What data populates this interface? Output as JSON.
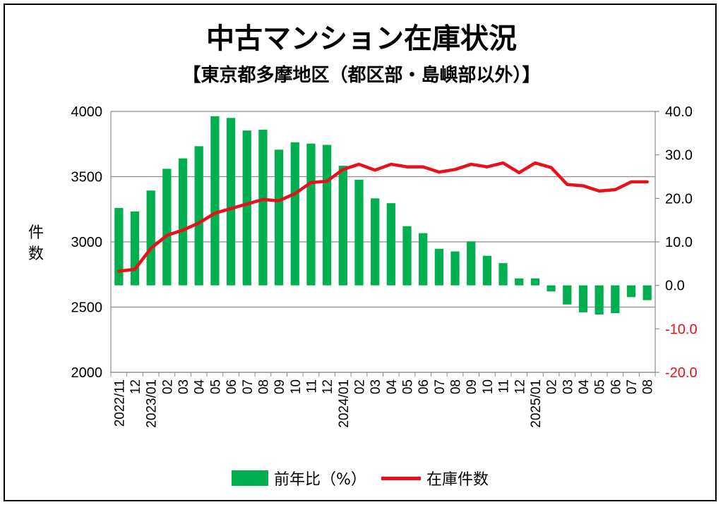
{
  "title": "中古マンション在庫状況",
  "subtitle": "【東京都多摩地区（都区部・島嶼部以外）】",
  "chart_data": {
    "type": "bar+line",
    "categories": [
      "2022/11",
      "12",
      "2023/01",
      "02",
      "03",
      "04",
      "05",
      "06",
      "07",
      "08",
      "09",
      "10",
      "11",
      "12",
      "2024/01",
      "02",
      "03",
      "04",
      "05",
      "06",
      "07",
      "08",
      "09",
      "10",
      "11",
      "12",
      "2025/01",
      "02",
      "03",
      "04",
      "05",
      "06",
      "07",
      "08"
    ],
    "series": [
      {
        "name": "前年比（%）",
        "type": "bar",
        "axis": "right",
        "color": "#00B050",
        "values": [
          17.8,
          17.0,
          21.8,
          26.8,
          29.2,
          32.0,
          38.9,
          38.5,
          35.6,
          35.8,
          31.2,
          32.9,
          32.6,
          32.3,
          27.5,
          24.3,
          20.0,
          18.9,
          13.6,
          12.0,
          8.4,
          7.8,
          10.1,
          6.8,
          5.1,
          1.6,
          1.6,
          -1.4,
          -4.4,
          -6.2,
          -6.7,
          -6.4,
          -2.7,
          -3.4
        ]
      },
      {
        "name": "在庫件数",
        "type": "line",
        "axis": "left",
        "color": "#E8111B",
        "values": [
          2775,
          2790,
          2950,
          3050,
          3090,
          3145,
          3220,
          3255,
          3290,
          3325,
          3315,
          3370,
          3455,
          3465,
          3555,
          3595,
          3550,
          3595,
          3575,
          3575,
          3535,
          3555,
          3595,
          3575,
          3605,
          3530,
          3605,
          3570,
          3440,
          3430,
          3390,
          3400,
          3460,
          3460
        ]
      }
    ],
    "y_left": {
      "label": "件数",
      "ylim": [
        2000,
        4000
      ],
      "ticks": [
        "2000",
        "2500",
        "3000",
        "3500",
        "4000"
      ]
    },
    "y_right": {
      "ylim": [
        -20,
        40
      ],
      "ticks": [
        "-20.0",
        "-10.0",
        "0.0",
        "10.0",
        "20.0",
        "30.0",
        "40.0"
      ],
      "negative_color": "#E8111B"
    },
    "x_group_labels": [
      "2022/11",
      "2023/01",
      "2024/01",
      "2025/01"
    ],
    "grid": true,
    "legend": "bottom"
  },
  "legend": {
    "bar_label": "前年比（%）",
    "line_label": "在庫件数"
  }
}
